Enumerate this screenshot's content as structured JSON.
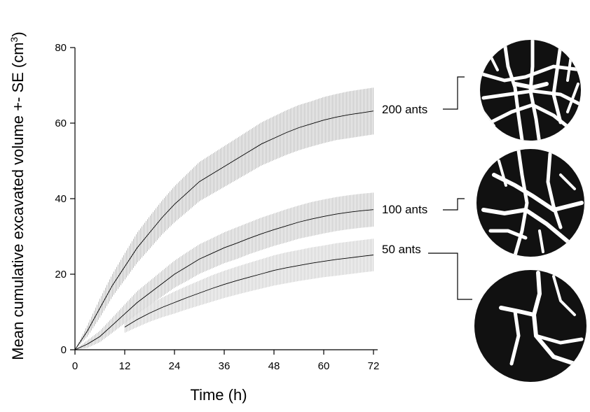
{
  "chart_data": {
    "type": "line",
    "xlabel": "Time (h)",
    "ylabel": "Mean cumulative excavated volume +- SE (cm",
    "ylabel_sup": "3",
    "ylabel_end": ")",
    "xlim": [
      0,
      72
    ],
    "ylim": [
      0,
      80
    ],
    "xticks": [
      0,
      12,
      24,
      36,
      48,
      60,
      72
    ],
    "yticks": [
      0,
      20,
      40,
      60,
      80
    ],
    "xtick_labels": [
      "0",
      "12",
      "24",
      "36",
      "48",
      "60",
      "72"
    ],
    "ytick_labels": [
      "0",
      "20",
      "40",
      "60",
      "80"
    ],
    "grid": false,
    "series": [
      {
        "name": "200 ants",
        "color": "#c8c8c8",
        "x": [
          0,
          3,
          6,
          9,
          12,
          15,
          18,
          21,
          24,
          27,
          30,
          33,
          36,
          39,
          42,
          45,
          48,
          51,
          54,
          57,
          60,
          63,
          66,
          69,
          72
        ],
        "mean": [
          0,
          5,
          11,
          17,
          22,
          27,
          31,
          35,
          38.5,
          41.5,
          44.5,
          46.5,
          48.5,
          50.5,
          52.5,
          54.5,
          56,
          57.5,
          58.8,
          59.8,
          60.8,
          61.6,
          62.2,
          62.7,
          63.2
        ],
        "se": [
          0,
          1.5,
          2.5,
          3,
          3.5,
          4,
          4.3,
          4.5,
          4.8,
          5,
          5.2,
          5.3,
          5.4,
          5.5,
          5.6,
          5.7,
          5.8,
          5.9,
          6,
          6,
          6.1,
          6.1,
          6.2,
          6.2,
          6.2
        ]
      },
      {
        "name": "100 ants",
        "color": "#d0d0d0",
        "x": [
          0,
          3,
          6,
          9,
          12,
          15,
          18,
          21,
          24,
          27,
          30,
          33,
          36,
          39,
          42,
          45,
          48,
          51,
          54,
          57,
          60,
          63,
          66,
          69,
          72
        ],
        "mean": [
          0,
          1.5,
          3.5,
          6.5,
          9.5,
          12.5,
          15,
          17.5,
          20,
          22,
          24,
          25.5,
          27,
          28.2,
          29.5,
          30.7,
          31.8,
          32.8,
          33.8,
          34.6,
          35.3,
          35.9,
          36.4,
          36.8,
          37.1
        ],
        "se": [
          0,
          1,
          1.5,
          2,
          2.5,
          3,
          3.2,
          3.4,
          3.6,
          3.8,
          3.9,
          4,
          4.1,
          4.2,
          4.2,
          4.3,
          4.3,
          4.4,
          4.4,
          4.5,
          4.5,
          4.5,
          4.5,
          4.5,
          4.5
        ]
      },
      {
        "name": "50 ants",
        "color": "#dedede",
        "x": [
          12,
          15,
          18,
          21,
          24,
          27,
          30,
          33,
          36,
          39,
          42,
          45,
          48,
          51,
          54,
          57,
          60,
          63,
          66,
          69,
          72
        ],
        "mean": [
          6,
          8,
          9.7,
          11.2,
          12.5,
          13.8,
          15,
          16.2,
          17.3,
          18.3,
          19.2,
          20.1,
          21,
          21.7,
          22.3,
          22.9,
          23.4,
          23.9,
          24.3,
          24.7,
          25.1
        ],
        "se": [
          1.5,
          2,
          2.3,
          2.6,
          2.9,
          3.1,
          3.3,
          3.5,
          3.6,
          3.7,
          3.8,
          3.9,
          4,
          4.1,
          4.1,
          4.2,
          4.2,
          4.3,
          4.3,
          4.3,
          4.3
        ]
      }
    ],
    "insets": [
      {
        "name": "200 ants",
        "pattern": "dense-network"
      },
      {
        "name": "100 ants",
        "pattern": "medium-network"
      },
      {
        "name": "50 ants",
        "pattern": "sparse-network"
      }
    ]
  }
}
